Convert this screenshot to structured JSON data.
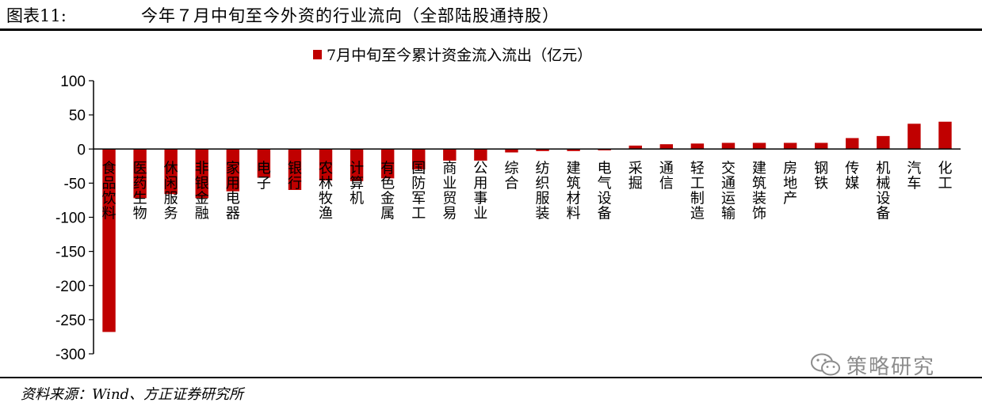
{
  "header": {
    "label": "图表11:",
    "title": "今年７月中旬至今外资的行业流向（全部陆股通持股）"
  },
  "source": "资料来源：Wind、方正证券研究所",
  "watermark": {
    "text": "策略研究",
    "icon": "wechat-icon"
  },
  "colors": {
    "bar": "#c00000",
    "axis": "#000000",
    "watermark": "#8c8c8c"
  },
  "chart_data": {
    "type": "bar",
    "title": "",
    "xlabel": "",
    "ylabel": "",
    "ylim": [
      -300,
      100
    ],
    "yticks": [
      100,
      50,
      0,
      -50,
      -100,
      -150,
      -200,
      -250,
      -300
    ],
    "grid": false,
    "legend_position": "top-center",
    "categories": [
      "食品饮料",
      "医药生物",
      "休闲服务",
      "非银金融",
      "家用电器",
      "电子",
      "银行",
      "农林牧渔",
      "计算机",
      "有色金属",
      "国防军工",
      "商业贸易",
      "公用事业",
      "综合",
      "纺织服装",
      "建筑材料",
      "电气设备",
      "采掘",
      "通信",
      "轻工制造",
      "交通运输",
      "建筑装饰",
      "房地产",
      "钢铁",
      "传媒",
      "机械设备",
      "汽车",
      "化工"
    ],
    "series": [
      {
        "name": "7月中旬至今累计资金流入流出（亿元）",
        "values": [
          -268,
          -72,
          -66,
          -72,
          -62,
          -42,
          -60,
          -46,
          -47,
          -43,
          -30,
          -17,
          -17,
          -5,
          -3,
          -3,
          -2,
          5,
          7,
          8,
          9,
          9,
          9,
          9,
          16,
          19,
          37,
          40
        ]
      }
    ]
  }
}
